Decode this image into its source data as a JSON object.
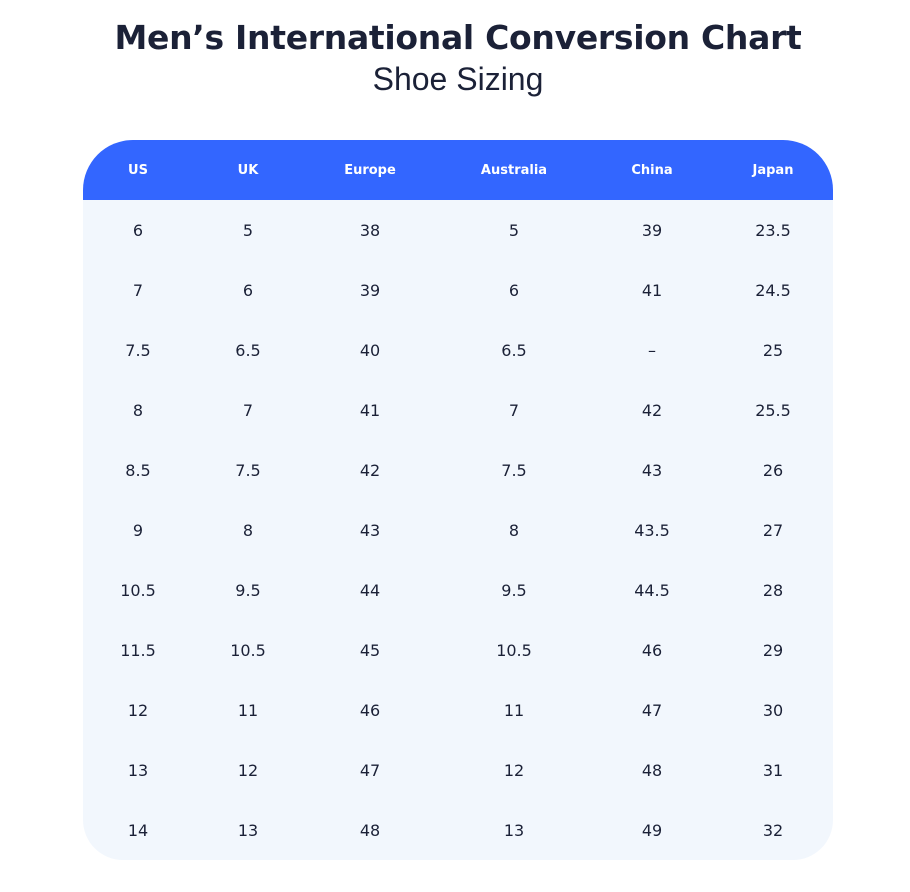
{
  "title": "Men’s International Conversion Chart",
  "subtitle": "Shoe Sizing",
  "colors": {
    "header_bg": "#3366ff",
    "body_bg": "#f2f7fd",
    "text": "#1b2137"
  },
  "table": {
    "headers": [
      "US",
      "UK",
      "Europe",
      "Australia",
      "China",
      "Japan"
    ],
    "rows": [
      [
        "6",
        "5",
        "38",
        "5",
        "39",
        "23.5"
      ],
      [
        "7",
        "6",
        "39",
        "6",
        "41",
        "24.5"
      ],
      [
        "7.5",
        "6.5",
        "40",
        "6.5",
        "–",
        "25"
      ],
      [
        "8",
        "7",
        "41",
        "7",
        "42",
        "25.5"
      ],
      [
        "8.5",
        "7.5",
        "42",
        "7.5",
        "43",
        "26"
      ],
      [
        "9",
        "8",
        "43",
        "8",
        "43.5",
        "27"
      ],
      [
        "10.5",
        "9.5",
        "44",
        "9.5",
        "44.5",
        "28"
      ],
      [
        "11.5",
        "10.5",
        "45",
        "10.5",
        "46",
        "29"
      ],
      [
        "12",
        "11",
        "46",
        "11",
        "47",
        "30"
      ],
      [
        "13",
        "12",
        "47",
        "12",
        "48",
        "31"
      ],
      [
        "14",
        "13",
        "48",
        "13",
        "49",
        "32"
      ]
    ]
  }
}
